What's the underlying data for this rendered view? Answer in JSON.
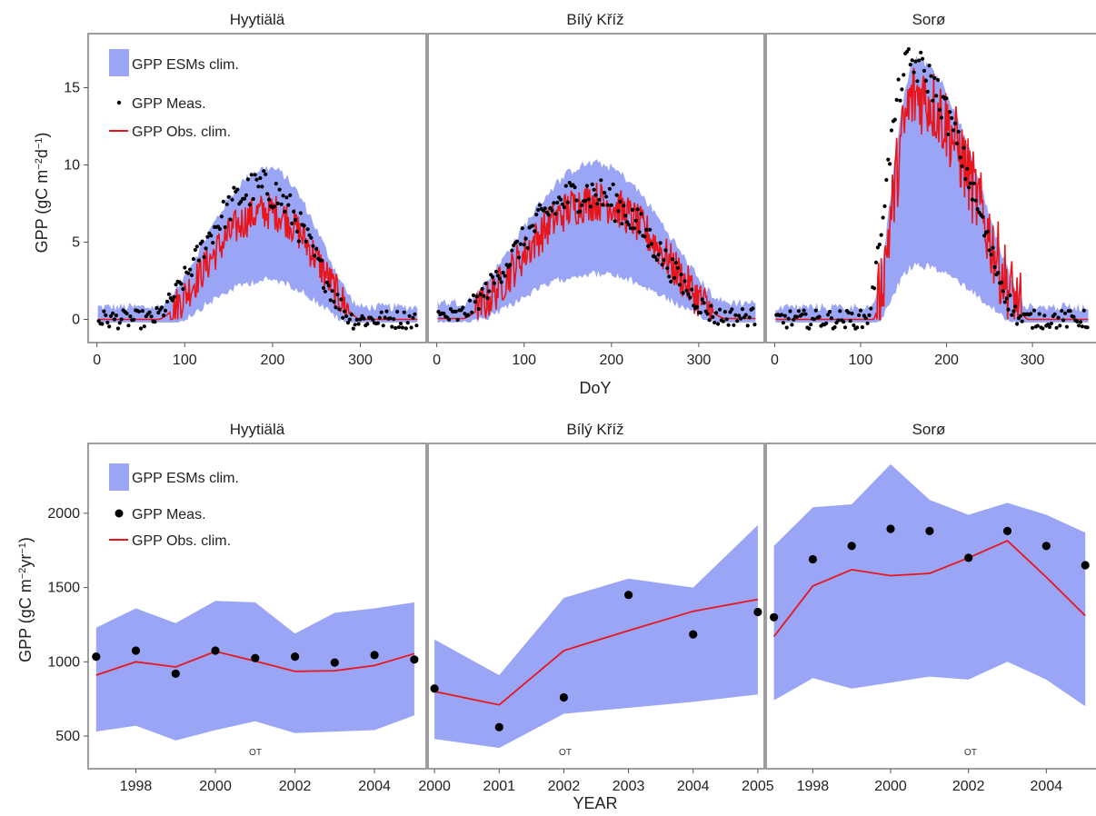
{
  "colors": {
    "band": "#9aa6f5",
    "obs_line": "#e8151b",
    "meas_point": "#000000",
    "frame": "#7f7f7f"
  },
  "legend": {
    "band_label": "GPP ESMs clim.",
    "meas_label": "GPP Meas.",
    "obs_label": "GPP Obs. clim."
  },
  "top": {
    "ylabel": "GPP (gC m",
    "ylabel_sup1": "−2",
    "ylabel_mid": "d",
    "ylabel_sup2": "−1",
    "ylabel_end": ")",
    "xlabel": "DoY",
    "xlim": [
      -10,
      375
    ],
    "ylim": [
      -1.5,
      18.5
    ],
    "xticks": [
      0,
      100,
      200,
      300
    ],
    "yticks": [
      0,
      5,
      10,
      15
    ]
  },
  "bottom": {
    "ylabel": "GPP (gC m",
    "ylabel_sup1": "−2",
    "ylabel_mid": "yr",
    "ylabel_sup2": "−1",
    "ylabel_end": ")",
    "xlabel": "YEAR",
    "ylim": [
      280,
      2470
    ],
    "yticks": [
      500,
      1000,
      1500,
      2000
    ],
    "ot_label": "OT"
  },
  "chart_data": [
    {
      "type": "area",
      "panel": "top",
      "title": "Hyytiälä",
      "shape": {
        "start": 70,
        "end": 300,
        "peak_day": 195,
        "band_hi": 9.0,
        "band_lo": 5.8,
        "obs_peak": 7.0,
        "meas_peak": 8.5,
        "winter": 0.0
      },
      "series": [
        {
          "name": "GPP ESMs clim.",
          "kind": "band"
        },
        {
          "name": "GPP Meas.",
          "kind": "points"
        },
        {
          "name": "GPP Obs. clim.",
          "kind": "line"
        }
      ]
    },
    {
      "type": "area",
      "panel": "top",
      "title": "Bílý Kříž",
      "shape": {
        "start": 30,
        "end": 330,
        "peak_day": 180,
        "band_hi": 9.0,
        "band_lo": 6.0,
        "obs_peak": 7.6,
        "meas_peak": 8.0,
        "winter": 0.3
      },
      "series": [
        {
          "name": "GPP ESMs clim.",
          "kind": "band"
        },
        {
          "name": "GPP Meas.",
          "kind": "points"
        },
        {
          "name": "GPP Obs. clim.",
          "kind": "line"
        }
      ]
    },
    {
      "type": "area",
      "panel": "top",
      "title": "Sorø",
      "shape": {
        "start": 115,
        "end": 295,
        "peak_day": 165,
        "band_hi": 16.0,
        "band_lo": 7.5,
        "obs_peak": 14.5,
        "meas_peak": 16.5,
        "winter": 0.0
      },
      "series": [
        {
          "name": "GPP ESMs clim.",
          "kind": "band"
        },
        {
          "name": "GPP Meas.",
          "kind": "points"
        },
        {
          "name": "GPP Obs. clim.",
          "kind": "line"
        }
      ]
    },
    {
      "type": "area",
      "panel": "bottom",
      "title": "Hyytiälä",
      "xlim": [
        1996.8,
        2005.3
      ],
      "xticks": [
        1998,
        2000,
        2002,
        2004
      ],
      "x": [
        1997,
        1998,
        1999,
        2000,
        2001,
        2002,
        2003,
        2004,
        2005
      ],
      "band_upper": [
        1230,
        1360,
        1260,
        1410,
        1400,
        1190,
        1330,
        1360,
        1400
      ],
      "band_lower": [
        530,
        570,
        470,
        540,
        600,
        520,
        530,
        540,
        640
      ],
      "obs_clim": [
        910,
        1000,
        965,
        1070,
        1005,
        935,
        940,
        975,
        1055
      ],
      "meas": [
        1035,
        1075,
        920,
        1075,
        1025,
        1035,
        995,
        1045,
        1015
      ]
    },
    {
      "type": "area",
      "panel": "bottom",
      "title": "Bílý Kříž",
      "xlim": [
        1999.9,
        2005.1
      ],
      "xticks": [
        2000,
        2001,
        2002,
        2003,
        2004,
        2005
      ],
      "x": [
        2000,
        2001,
        2002,
        2003,
        2004,
        2005
      ],
      "band_upper": [
        1150,
        910,
        1430,
        1560,
        1500,
        1920
      ],
      "band_lower": [
        480,
        420,
        650,
        690,
        730,
        780
      ],
      "obs_clim": [
        800,
        710,
        1075,
        1210,
        1340,
        1420
      ],
      "meas": [
        820,
        560,
        760,
        1450,
        1185,
        1335
      ]
    },
    {
      "type": "area",
      "panel": "bottom",
      "title": "Sorø",
      "xlim": [
        1996.8,
        2005.3
      ],
      "xticks": [
        1998,
        2000,
        2002,
        2004
      ],
      "x": [
        1997,
        1998,
        1999,
        2000,
        2001,
        2002,
        2003,
        2004,
        2005
      ],
      "band_upper": [
        1780,
        2040,
        2060,
        2330,
        2090,
        1990,
        2070,
        1990,
        1870
      ],
      "band_lower": [
        740,
        890,
        820,
        860,
        900,
        880,
        1000,
        880,
        700
      ],
      "obs_clim": [
        1170,
        1510,
        1620,
        1580,
        1595,
        1700,
        1815,
        1570,
        1310
      ],
      "meas": [
        1300,
        1690,
        1780,
        1895,
        1880,
        1700,
        1880,
        1780,
        1650
      ]
    }
  ]
}
